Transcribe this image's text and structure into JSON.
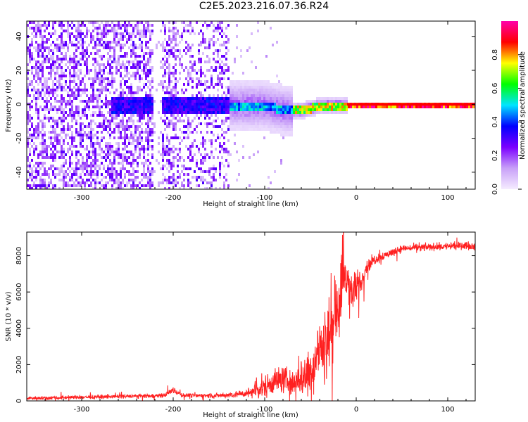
{
  "page_title": "C2E5.2023.216.07.36.R24",
  "chart_data": [
    {
      "type": "heatmap",
      "xlabel": "Height of straight line (km)",
      "ylabel": "Frequency (Hz)",
      "xlim": [
        -360,
        130
      ],
      "ylim": [
        -50,
        49
      ],
      "x_ticks": [
        -300,
        -200,
        -100,
        0,
        100
      ],
      "y_ticks": [
        -40,
        -20,
        0,
        20,
        40
      ],
      "grid": false,
      "colorbar": {
        "label": "Normalized spectral amplitude",
        "range": [
          0,
          1
        ],
        "ticks": [
          "0.0",
          "0.2",
          "0.4",
          "0.6",
          "0.8"
        ],
        "colors": [
          "#f5ecff",
          "#c8a0f8",
          "#7b00ff",
          "#0000ff",
          "#00e5ff",
          "#00ff00",
          "#ffff00",
          "#ff0000",
          "#ff00aa"
        ]
      },
      "regions": [
        {
          "x_range": [
            -360,
            -140
          ],
          "freq_spread_hz": 50,
          "amplitude": 0.2,
          "description_free": true
        },
        {
          "x_range": [
            -140,
            -70
          ],
          "freq_spread_hz": 15,
          "amplitude": 0.5
        },
        {
          "x_range": [
            -70,
            -10
          ],
          "freq_spread_hz": 5,
          "amplitude": 0.75
        },
        {
          "x_range": [
            -10,
            130
          ],
          "freq_spread_hz": 1,
          "amplitude": 0.95
        }
      ]
    },
    {
      "type": "line",
      "xlabel": "Height of straight line (km)",
      "ylabel": "SNR (10 * v/v)",
      "xlim": [
        -360,
        130
      ],
      "ylim": [
        0,
        9300
      ],
      "x_ticks": [
        -300,
        -200,
        -100,
        0,
        100
      ],
      "y_ticks": [
        0,
        2000,
        4000,
        6000,
        8000
      ],
      "grid": false,
      "series": [
        {
          "color": "#ff2020",
          "x": [
            -360,
            -300,
            -250,
            -210,
            -200,
            -190,
            -150,
            -120,
            -110,
            -100,
            -90,
            -80,
            -70,
            -60,
            -50,
            -40,
            -30,
            -20,
            -15,
            -10,
            -5,
            0,
            5,
            10,
            20,
            30,
            40,
            50,
            70,
            90,
            110,
            130
          ],
          "y": [
            150,
            200,
            250,
            300,
            600,
            300,
            300,
            400,
            600,
            800,
            1100,
            1200,
            1000,
            1300,
            1700,
            2800,
            3500,
            5200,
            6500,
            6800,
            5800,
            6200,
            6500,
            7300,
            7800,
            8000,
            8200,
            8400,
            8450,
            8500,
            8550,
            8550
          ],
          "noise": [
            80,
            80,
            80,
            100,
            150,
            100,
            100,
            200,
            350,
            500,
            600,
            600,
            600,
            900,
            1200,
            1500,
            1700,
            1700,
            1500,
            1200,
            900,
            800,
            600,
            300,
            250,
            200,
            180,
            170,
            170,
            170,
            170,
            170
          ]
        }
      ]
    }
  ]
}
